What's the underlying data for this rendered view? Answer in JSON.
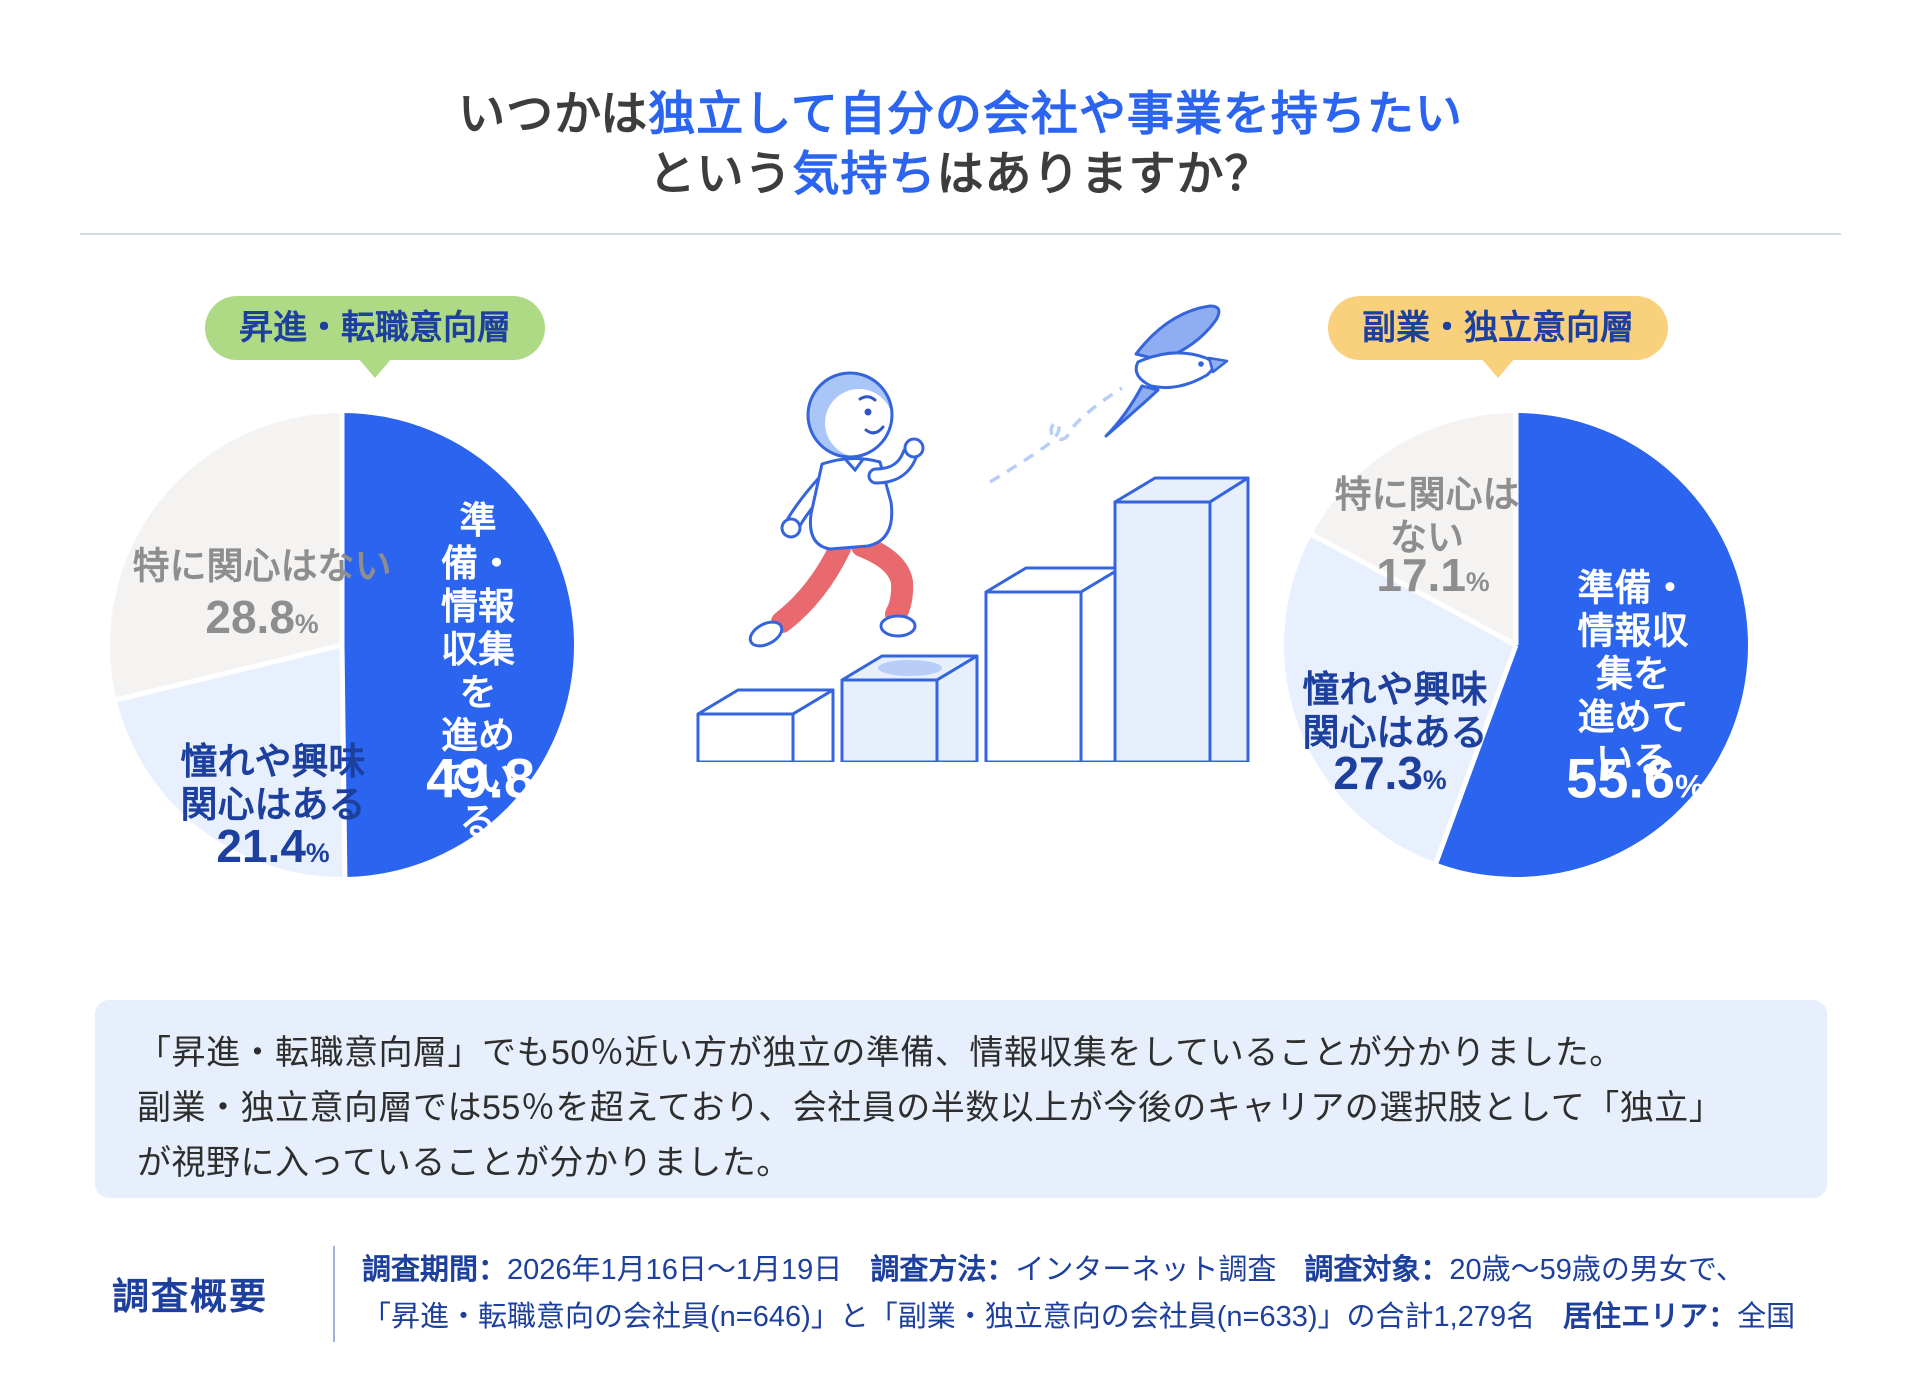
{
  "meta": {
    "pct_sign": "%"
  },
  "title": {
    "line1": [
      {
        "text": "いつかは",
        "color": "dark"
      },
      {
        "text": "独立して自分の会社や事業を持ちたい",
        "color": "blue"
      }
    ],
    "line2": [
      {
        "text": "という",
        "color": "dark"
      },
      {
        "text": "気持ち",
        "color": "blue"
      },
      {
        "text": "はありますか？",
        "color": "dark"
      }
    ]
  },
  "badges": {
    "left": "昇進・転職意向層",
    "right": "副業・独立意向層"
  },
  "colors": {
    "accent_blue": "#2b64ee",
    "slice_light_blue": "#e9f0fd",
    "slice_gray": "#f5f3f1",
    "navy_text": "#1d3f9e",
    "badge_green": "#aeda85",
    "badge_yellow": "#f9d17d",
    "summary_bg": "#e8effc"
  },
  "chart_data": [
    {
      "type": "pie",
      "group": "昇進・転職意向層",
      "start_angle_deg": -90,
      "direction": "clockwise",
      "slices": [
        {
          "label": "準備・情報収集を\n進めている",
          "value": 49.8,
          "color": "#2b64ee"
        },
        {
          "label": "憧れや興味\n関心はある",
          "value": 21.4,
          "color": "#e9f0fd"
        },
        {
          "label": "特に関心はない",
          "value": 28.8,
          "color": "#f5f3f1"
        }
      ]
    },
    {
      "type": "pie",
      "group": "副業・独立意向層",
      "start_angle_deg": -90,
      "direction": "clockwise",
      "slices": [
        {
          "label": "準備・情報収集を\n進めている",
          "value": 55.6,
          "color": "#2b64ee"
        },
        {
          "label": "憧れや興味\n関心はある",
          "value": 27.3,
          "color": "#e9f0fd"
        },
        {
          "label": "特に関心は\nない",
          "value": 17.1,
          "color": "#f5f3f1"
        }
      ]
    }
  ],
  "summary": {
    "lines": [
      "「昇進・転職意向層」でも50％近い方が独立の準備、情報収集をしていることが分かりました。",
      "副業・独立意向層では55％を超えており、会社員の半数以上が今後のキャリアの選択肢として「独立」",
      "が視野に入っていることが分かりました。"
    ]
  },
  "survey": {
    "heading": "調査概要",
    "line1": [
      {
        "label": true,
        "text": "調査期間："
      },
      {
        "label": false,
        "text": "2026年1月16日〜1月19日"
      },
      {
        "label": true,
        "text": "調査方法："
      },
      {
        "label": false,
        "text": "インターネット調査"
      },
      {
        "label": true,
        "text": "調査対象："
      },
      {
        "label": false,
        "text": "20歳〜59歳の男女で、"
      }
    ],
    "line2": [
      {
        "label": false,
        "text": "「昇進・転職意向の会社員(n=646)」と「副業・独立意向の会社員(n=633)」の合計1,279名"
      },
      {
        "label": true,
        "text": "居住エリア："
      },
      {
        "label": false,
        "text": "全国"
      }
    ]
  }
}
